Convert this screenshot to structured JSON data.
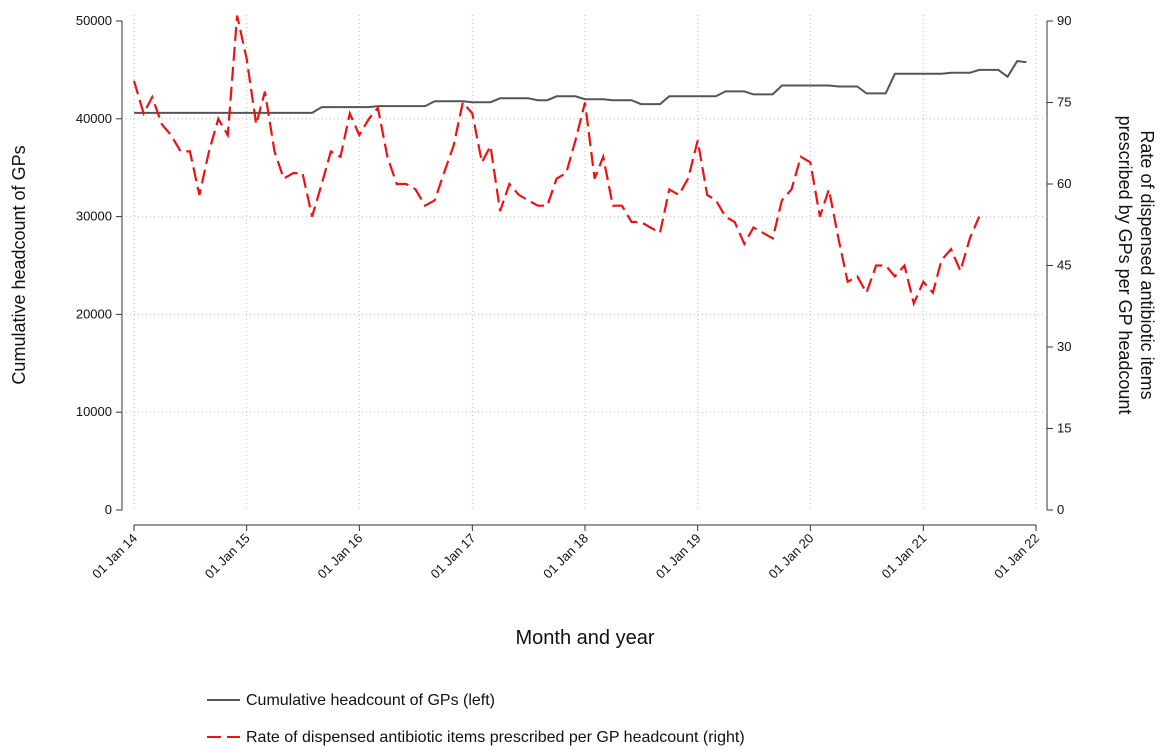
{
  "chart_data": {
    "type": "line",
    "xlabel": "Month and year",
    "ylabel": "Cumulative headcount of GPs",
    "y2label": [
      "Rate of dispensed antibiotic items",
      "prescribed by GPs per GP headcount"
    ],
    "x": [
      "2014-01-01",
      "2014-02-01",
      "2014-03-01",
      "2014-04-01",
      "2014-05-01",
      "2014-06-01",
      "2014-07-01",
      "2014-08-01",
      "2014-09-01",
      "2014-10-01",
      "2014-11-01",
      "2014-12-01",
      "2015-01-01",
      "2015-02-01",
      "2015-03-01",
      "2015-04-01",
      "2015-05-01",
      "2015-06-01",
      "2015-07-01",
      "2015-08-01",
      "2015-09-01",
      "2015-10-01",
      "2015-11-01",
      "2015-12-01",
      "2016-01-01",
      "2016-02-01",
      "2016-03-01",
      "2016-04-01",
      "2016-05-01",
      "2016-06-01",
      "2016-07-01",
      "2016-08-01",
      "2016-09-01",
      "2016-10-01",
      "2016-11-01",
      "2016-12-01",
      "2017-01-01",
      "2017-02-01",
      "2017-03-01",
      "2017-04-01",
      "2017-05-01",
      "2017-06-01",
      "2017-07-01",
      "2017-08-01",
      "2017-09-01",
      "2017-10-01",
      "2017-11-01",
      "2017-12-01",
      "2018-01-01",
      "2018-02-01",
      "2018-03-01",
      "2018-04-01",
      "2018-05-01",
      "2018-06-01",
      "2018-07-01",
      "2018-08-01",
      "2018-09-01",
      "2018-10-01",
      "2018-11-01",
      "2018-12-01",
      "2019-01-01",
      "2019-02-01",
      "2019-03-01",
      "2019-04-01",
      "2019-05-01",
      "2019-06-01",
      "2019-07-01",
      "2019-08-01",
      "2019-09-01",
      "2019-10-01",
      "2019-11-01",
      "2019-12-01",
      "2020-01-01",
      "2020-02-01",
      "2020-03-01",
      "2020-04-01",
      "2020-05-01",
      "2020-06-01",
      "2020-07-01",
      "2020-08-01",
      "2020-09-01",
      "2020-10-01",
      "2020-11-01",
      "2020-12-01",
      "2021-01-01",
      "2021-02-01",
      "2021-03-01",
      "2021-04-01",
      "2021-05-01",
      "2021-06-01",
      "2021-07-01",
      "2021-08-01",
      "2021-09-01",
      "2021-10-01",
      "2021-11-01",
      "2021-12-01"
    ],
    "series": [
      {
        "name": "Cumulative headcount of GPs (left)",
        "color": "#555555",
        "dash": false,
        "axis": "y",
        "values": [
          40600,
          40600,
          40600,
          40600,
          40600,
          40600,
          40600,
          40600,
          40600,
          40600,
          40600,
          40600,
          40600,
          40600,
          40600,
          40600,
          40600,
          40600,
          40600,
          40600,
          41200,
          41200,
          41200,
          41200,
          41200,
          41200,
          41300,
          41300,
          41300,
          41300,
          41300,
          41300,
          41800,
          41800,
          41800,
          41800,
          41700,
          41700,
          41700,
          42100,
          42100,
          42100,
          42100,
          41900,
          41900,
          42300,
          42300,
          42300,
          42000,
          42000,
          42000,
          41900,
          41900,
          41900,
          41500,
          41500,
          41500,
          42300,
          42300,
          42300,
          42300,
          42300,
          42300,
          42800,
          42800,
          42800,
          42500,
          42500,
          42500,
          43400,
          43400,
          43400,
          43400,
          43400,
          43400,
          43300,
          43300,
          43300,
          42600,
          42600,
          42600,
          44600,
          44600,
          44600,
          44600,
          44600,
          44600,
          44700,
          44700,
          44700,
          45000,
          45000,
          45000,
          44300,
          45900,
          45800
        ]
      },
      {
        "name": "Rate of dispensed antibiotic items prescribed per GP headcount (right)",
        "color": "#ee1111",
        "dash": true,
        "axis": "y2",
        "values": [
          79,
          73,
          76,
          71,
          69,
          66,
          66,
          58,
          66,
          72,
          69,
          91,
          83,
          71,
          77,
          66,
          61,
          62,
          62,
          54,
          60,
          66,
          65,
          73,
          69,
          72,
          74,
          65,
          60,
          60,
          59,
          56,
          57,
          62,
          67,
          75,
          73,
          64,
          67,
          55,
          60,
          58,
          57,
          56,
          56,
          61,
          62,
          68,
          75,
          61,
          65,
          56,
          56,
          53,
          53,
          52,
          51,
          59,
          58,
          61,
          68,
          58,
          57,
          54,
          53,
          49,
          52,
          51,
          50,
          57,
          59,
          65,
          64,
          54,
          59,
          50,
          42,
          43,
          40,
          45,
          45,
          43,
          45,
          38,
          42,
          40,
          46,
          48,
          44,
          50,
          54,
          null,
          null,
          null,
          null,
          null
        ]
      }
    ],
    "xlim": [
      "2014-01-01",
      "2022-01-01"
    ],
    "xticks": [
      {
        "value": "2014-01-01",
        "label": "01 Jan 14"
      },
      {
        "value": "2015-01-01",
        "label": "01 Jan 15"
      },
      {
        "value": "2016-01-01",
        "label": "01 Jan 16"
      },
      {
        "value": "2017-01-01",
        "label": "01 Jan 17"
      },
      {
        "value": "2018-01-01",
        "label": "01 Jan 18"
      },
      {
        "value": "2019-01-01",
        "label": "01 Jan 19"
      },
      {
        "value": "2020-01-01",
        "label": "01 Jan 20"
      },
      {
        "value": "2021-01-01",
        "label": "01 Jan 21"
      },
      {
        "value": "2022-01-01",
        "label": "01 Jan 22"
      }
    ],
    "ylim": [
      0,
      50000
    ],
    "yticks": [
      0,
      10000,
      20000,
      30000,
      40000,
      50000
    ],
    "y2lim": [
      0,
      90
    ],
    "y2ticks": [
      0,
      15,
      30,
      45,
      60,
      75,
      90
    ],
    "grid": true,
    "legend": "bottom"
  }
}
